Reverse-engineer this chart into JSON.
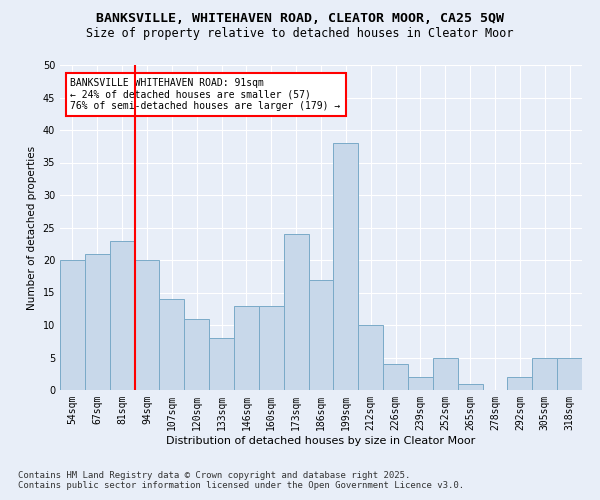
{
  "title": "BANKSVILLE, WHITEHAVEN ROAD, CLEATOR MOOR, CA25 5QW",
  "subtitle": "Size of property relative to detached houses in Cleator Moor",
  "xlabel": "Distribution of detached houses by size in Cleator Moor",
  "ylabel": "Number of detached properties",
  "categories": [
    "54sqm",
    "67sqm",
    "81sqm",
    "94sqm",
    "107sqm",
    "120sqm",
    "133sqm",
    "146sqm",
    "160sqm",
    "173sqm",
    "186sqm",
    "199sqm",
    "212sqm",
    "226sqm",
    "239sqm",
    "252sqm",
    "265sqm",
    "278sqm",
    "292sqm",
    "305sqm",
    "318sqm"
  ],
  "values": [
    20,
    21,
    23,
    20,
    14,
    11,
    8,
    13,
    13,
    24,
    17,
    38,
    10,
    4,
    2,
    5,
    1,
    0,
    2,
    5,
    5
  ],
  "bar_color": "#c8d8ea",
  "bar_edge_color": "#7aaac8",
  "red_line_x": 2.5,
  "annotation_text": "BANKSVILLE WHITEHAVEN ROAD: 91sqm\n← 24% of detached houses are smaller (57)\n76% of semi-detached houses are larger (179) →",
  "annotation_box_color": "white",
  "annotation_box_edge_color": "red",
  "ylim": [
    0,
    50
  ],
  "yticks": [
    0,
    5,
    10,
    15,
    20,
    25,
    30,
    35,
    40,
    45,
    50
  ],
  "footer_text": "Contains HM Land Registry data © Crown copyright and database right 2025.\nContains public sector information licensed under the Open Government Licence v3.0.",
  "bg_color": "#e8eef8",
  "plot_bg_color": "#e8eef8",
  "grid_color": "white",
  "title_fontsize": 9.5,
  "subtitle_fontsize": 8.5,
  "annotation_fontsize": 7,
  "footer_fontsize": 6.5,
  "tick_fontsize": 7,
  "ylabel_fontsize": 7.5,
  "xlabel_fontsize": 8
}
